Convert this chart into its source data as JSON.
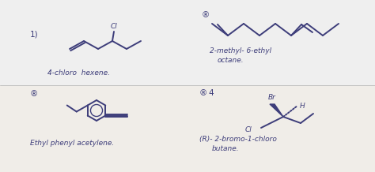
{
  "bg_color_top": "#efefef",
  "bg_color_bot": "#f5f3f0",
  "ink_color": "#3d3d7a",
  "lw": 1.4,
  "fontsize": 6.5,
  "label_fontsize": 7.5,
  "panel1_label": "1)",
  "panel1_name": "4-chloro  hexene.",
  "panel2_label": "®",
  "panel2_name": "2-methyl- 6-ethyl",
  "panel2_name2": "octane.",
  "panel3_label": "®",
  "panel3_name": "Ethyl phenyl acetylene.",
  "panel4_label": "®",
  "panel4_num": "4",
  "panel4_name": "(R)- 2-bromo-1-chloro",
  "panel4_name2": "butane."
}
